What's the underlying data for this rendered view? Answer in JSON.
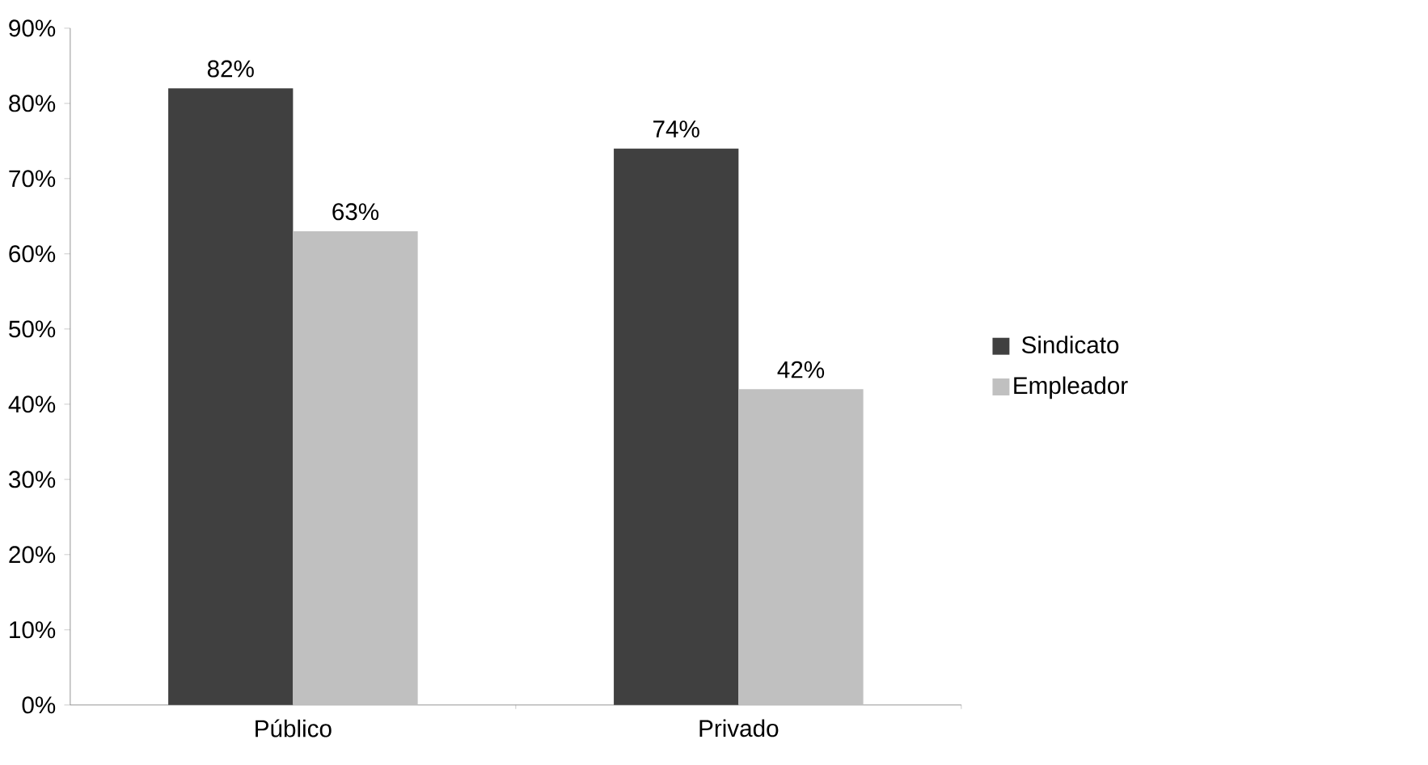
{
  "chart_data": {
    "type": "bar",
    "categories": [
      "Público",
      "Privado"
    ],
    "series": [
      {
        "name": "Sindicato",
        "color": "#404040",
        "values": [
          82,
          74
        ],
        "value_labels": [
          "82%",
          "74%"
        ]
      },
      {
        "name": "Empleador",
        "color": "#c0c0c0",
        "values": [
          63,
          42
        ],
        "value_labels": [
          "63%",
          "42%"
        ]
      }
    ],
    "ylim": [
      0,
      90
    ],
    "yticks": [
      {
        "value": 0,
        "label": "0%"
      },
      {
        "value": 10,
        "label": "10%"
      },
      {
        "value": 20,
        "label": "20%"
      },
      {
        "value": 30,
        "label": "30%"
      },
      {
        "value": 40,
        "label": "40%"
      },
      {
        "value": 50,
        "label": "50%"
      },
      {
        "value": 60,
        "label": "60%"
      },
      {
        "value": 70,
        "label": "70%"
      },
      {
        "value": 80,
        "label": "80%"
      },
      {
        "value": 90,
        "label": "90%"
      }
    ],
    "grid": false,
    "legend": "right"
  }
}
